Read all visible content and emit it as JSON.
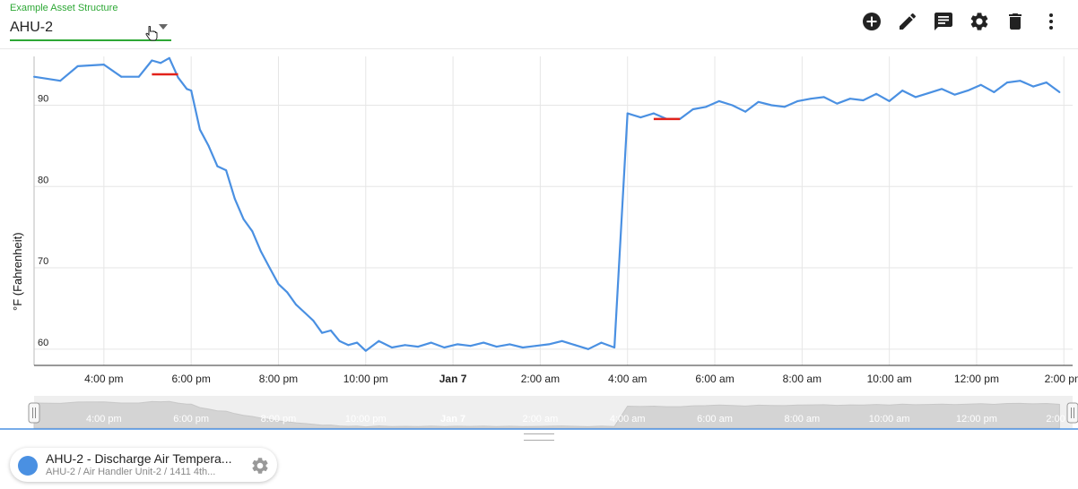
{
  "header": {
    "asset_label": "Example Asset Structure",
    "asset_value": "AHU-2"
  },
  "toolbar": {
    "icons": [
      "add-circle-icon",
      "pencil-icon",
      "comment-icon",
      "gear-icon",
      "trash-icon",
      "more-vert-icon"
    ]
  },
  "chart_data": {
    "type": "line",
    "title": "",
    "xlabel": "",
    "ylabel": "°F (Fahrenheit)",
    "ylim": [
      58,
      96
    ],
    "y_ticks": [
      60,
      70,
      80,
      90
    ],
    "x_ticks": [
      "4:00 pm",
      "6:00 pm",
      "8:00 pm",
      "10:00 pm",
      "Jan 7",
      "2:00 am",
      "4:00 am",
      "6:00 am",
      "8:00 am",
      "10:00 am",
      "12:00 pm",
      "2:00 pm"
    ],
    "x_range_hours": [
      -3.6,
      20.2
    ],
    "grid": true,
    "series": [
      {
        "color": "#4a90e2",
        "x": [
          -3.6,
          -3.0,
          -2.6,
          -2.0,
          -1.6,
          -1.2,
          -0.9,
          -0.7,
          -0.5,
          -0.3,
          -0.1,
          0.0,
          0.2,
          0.4,
          0.6,
          0.8,
          1.0,
          1.2,
          1.4,
          1.6,
          1.8,
          2.0,
          2.2,
          2.4,
          2.6,
          2.8,
          3.0,
          3.2,
          3.4,
          3.6,
          3.8,
          4.0,
          4.3,
          4.6,
          4.9,
          5.2,
          5.5,
          5.8,
          6.1,
          6.4,
          6.7,
          7.0,
          7.3,
          7.6,
          7.9,
          8.2,
          8.5,
          8.8,
          9.1,
          9.4,
          9.7,
          10.0,
          10.3,
          10.6,
          10.9,
          11.2,
          11.5,
          11.8,
          12.1,
          12.4,
          12.7,
          13.0,
          13.3,
          13.6,
          13.9,
          14.2,
          14.5,
          14.8,
          15.1,
          15.4,
          15.7,
          16.0,
          16.3,
          16.6,
          16.9,
          17.2,
          17.5,
          17.8,
          18.1,
          18.4,
          18.7,
          19.0,
          19.3,
          19.6,
          19.9
        ],
        "y": [
          93.5,
          93.0,
          94.8,
          95.0,
          93.5,
          93.5,
          95.5,
          95.2,
          95.8,
          93.4,
          92.0,
          91.8,
          87.0,
          85.0,
          82.5,
          82.0,
          78.5,
          76.0,
          74.5,
          72.0,
          70.0,
          68.0,
          67.0,
          65.5,
          64.5,
          63.5,
          62.0,
          62.3,
          61.0,
          60.5,
          60.8,
          59.8,
          61.0,
          60.2,
          60.5,
          60.3,
          60.8,
          60.2,
          60.6,
          60.4,
          60.8,
          60.3,
          60.6,
          60.2,
          60.4,
          60.6,
          61.0,
          60.5,
          60.0,
          60.8,
          60.2,
          89.0,
          88.5,
          89.0,
          88.3,
          88.3,
          89.5,
          89.8,
          90.5,
          90.0,
          89.2,
          90.4,
          90.0,
          89.8,
          90.5,
          90.8,
          91.0,
          90.2,
          90.8,
          90.6,
          91.4,
          90.5,
          91.8,
          91.0,
          91.5,
          92.0,
          91.3,
          91.8,
          92.5,
          91.6,
          92.8,
          93.0,
          92.3,
          92.8,
          91.6
        ]
      }
    ],
    "gap_markers": [
      {
        "color": "#e2221b",
        "x": [
          -0.9,
          -0.3
        ],
        "y": 93.8
      },
      {
        "color": "#e2221b",
        "x": [
          10.6,
          11.2
        ],
        "y": 88.3
      }
    ]
  },
  "navigator": {
    "labels": [
      "4:00 pm",
      "6:00 pm",
      "8:00 pm",
      "10:00 pm",
      "Jan 7",
      "2:00 am",
      "4:00 am",
      "6:00 am",
      "8:00 am",
      "10:00 am",
      "12:00 pm",
      "2:00 pm"
    ]
  },
  "legend": {
    "title": "AHU-2 - Discharge Air Tempera...",
    "subtitle": "AHU-2 / Air Handler Unit-2 / 1411 4th...",
    "color": "#4a90e2"
  }
}
